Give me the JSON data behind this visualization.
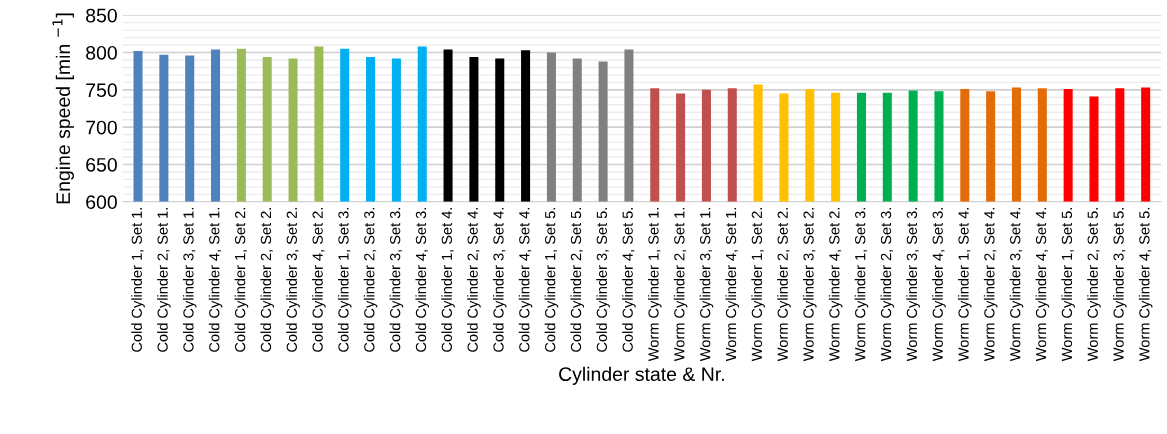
{
  "chart_data": {
    "type": "bar",
    "xlabel": "Cylinder state & Nr.",
    "ylabel": "Engine speed [min $^{−1}$]",
    "categories": [
      "Cold Cylinder 1, Set 1.",
      "Cold Cylinder 2, Set 1.",
      "Cold Cylinder 3, Set 1.",
      "Cold Cylinder 4, Set 1.",
      "Cold Cylinder 1, Set 2.",
      "Cold Cylinder 2, Set 2.",
      "Cold Cylinder 3, Set 2.",
      "Cold Cylinder 4, Set 2.",
      "Cold Cylinder 1, Set 3.",
      "Cold Cylinder 2, Set 3.",
      "Cold Cylinder 3, Set 3.",
      "Cold Cylinder 4, Set 3.",
      "Cold Cylinder 1, Set 4.",
      "Cold Cylinder 2, Set 4.",
      "Cold Cylinder 3, Set 4.",
      "Cold Cylinder 4, Set 4.",
      "Cold Cylinder 1, Set 5.",
      "Cold Cylinder 2, Set 5.",
      "Cold Cylinder 3, Set 5.",
      "Cold Cylinder 4, Set 5.",
      "Worm Cylinder 1, Set 1.",
      "Worm Cylinder 2, Set 1.",
      "Worm Cylinder 3, Set 1.",
      "Worm Cylinder 4, Set 1.",
      "Worm Cylinder 1, Set 2.",
      "Worm Cylinder 2, Set 2.",
      "Worm Cylinder 3, Set 2.",
      "Worm Cylinder 4, Set 2.",
      "Worm Cylinder 1, Set 3.",
      "Worm Cylinder 2, Set 3.",
      "Worm Cylinder 3, Set 3.",
      "Worm Cylinder 4, Set 3.",
      "Worm Cylinder 1, Set 4.",
      "Worm Cylinder 2, Set 4.",
      "Worm Cylinder 3, Set 4.",
      "Worm Cylinder 4, Set 4.",
      "Worm Cylinder 1, Set 5.",
      "Worm Cylinder 2, Set 5.",
      "Worm Cylinder 3, Set 5.",
      "Worm Cylinder 4, Set 5."
    ],
    "values": [
      802,
      797,
      796,
      804,
      805,
      794,
      792,
      808,
      805,
      794,
      792,
      808,
      804,
      794,
      792,
      803,
      800,
      792,
      788,
      804,
      752,
      745,
      750,
      752,
      757,
      745,
      751,
      746,
      746,
      746,
      749,
      748,
      751,
      748,
      753,
      752,
      751,
      741,
      752,
      753
    ],
    "colors": [
      "#4f81bd",
      "#4f81bd",
      "#4f81bd",
      "#4f81bd",
      "#9bbb59",
      "#9bbb59",
      "#9bbb59",
      "#9bbb59",
      "#00b0f0",
      "#00b0f0",
      "#00b0f0",
      "#00b0f0",
      "#000000",
      "#000000",
      "#000000",
      "#000000",
      "#808080",
      "#808080",
      "#808080",
      "#808080",
      "#c0504d",
      "#c0504d",
      "#c0504d",
      "#c0504d",
      "#ffc000",
      "#ffc000",
      "#ffc000",
      "#ffc000",
      "#00b050",
      "#00b050",
      "#00b050",
      "#00b050",
      "#e36c09",
      "#e36c09",
      "#e36c09",
      "#e36c09",
      "#ff0000",
      "#ff0000",
      "#ff0000",
      "#ff0000"
    ],
    "ylim": [
      600,
      850
    ],
    "yticks": [
      600,
      650,
      700,
      750,
      800,
      850
    ],
    "grid": "y"
  }
}
